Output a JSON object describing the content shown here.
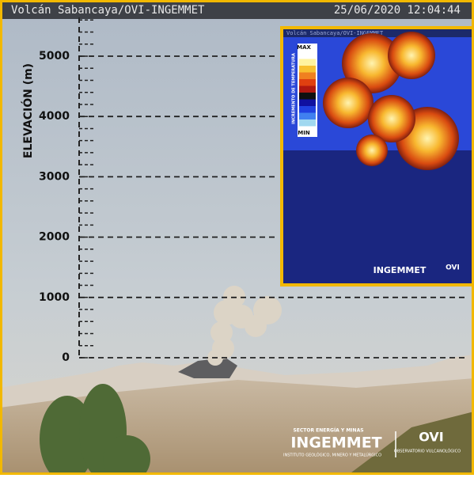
{
  "header": {
    "title": "Volcán Sabancaya/OVI-INGEMMET",
    "timestamp": "25/06/2020 12:04:44"
  },
  "elevation_scale": {
    "label": "ELEVACIÓN (m)",
    "ticks": [
      0,
      1000,
      2000,
      3000,
      4000,
      5000
    ]
  },
  "inset": {
    "title": "Volcán Sabancaya/OVI-INGEMMET",
    "max": "MAX",
    "min": "MIN",
    "legend_label": "INCREMENTO DE TEMPERATURA",
    "logo": "INGEMMET",
    "logo2": "OVI"
  },
  "logos": {
    "sector": "SECTOR ENERGÍA Y MINAS",
    "ingemmet": "INGEMMET",
    "institute": "INSTITUTO GEOLÓGICO, MINERO Y METALÚRGICO",
    "ovi": "OVI",
    "observatory": "OBSERVATORIO VULCANOLÓGICO"
  }
}
